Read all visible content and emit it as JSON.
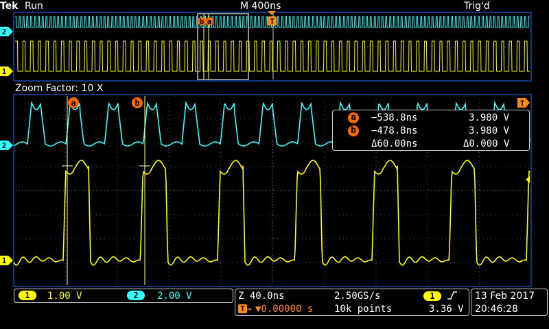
{
  "header": {
    "brand": "Tek",
    "run_state": "Run",
    "timebase": "M 400ns",
    "trigger_state": "Trig'd"
  },
  "overview": {
    "cursor_b_label": "b",
    "cursor_a_label": "a",
    "trigger_marker": "T"
  },
  "zoom": {
    "factor_label": "Zoom Factor: 10 X"
  },
  "cursor_labels": {
    "a": "a",
    "b": "b"
  },
  "channels": {
    "ch1": {
      "label": "1",
      "color": "#ffff00",
      "scale": "1.00 V"
    },
    "ch2": {
      "label": "2",
      "color": "#33ffff",
      "scale": "2.00 V"
    }
  },
  "measurements": {
    "a": {
      "label": "a",
      "time": "−538.8ns",
      "voltage": "3.980 V"
    },
    "b": {
      "label": "b",
      "time": "−478.8ns",
      "voltage": "3.980 V"
    },
    "delta_time": "Δ60.00ns",
    "delta_voltage": "Δ0.000 V"
  },
  "acquisition": {
    "zoom_timebase": "Z 40.0ns",
    "sample_rate": "2.50GS/s",
    "trigger_position": "▼0.00000 s",
    "record_length": "10k points",
    "trigger_source": "1",
    "trigger_slope_icon": "rising-edge-icon",
    "trigger_level": "3.36 V"
  },
  "datetime": {
    "date": "13 Feb  2017",
    "time": "20:46:28"
  },
  "colors": {
    "grid": "#5a5a5a",
    "accent_orange": "#ff6a00",
    "frame": "#0a3a80"
  }
}
